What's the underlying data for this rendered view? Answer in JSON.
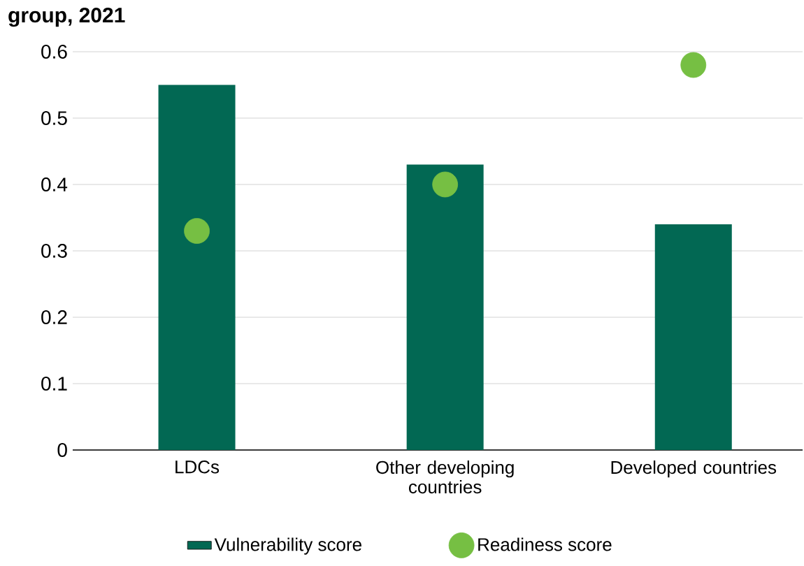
{
  "chart_data": {
    "type": "bar",
    "title": "group, 2021",
    "categories": [
      "LDCs",
      "Other developing countries",
      "Developed countries"
    ],
    "series": [
      {
        "name": "Vulnerability score",
        "color": "#026853",
        "values": [
          0.55,
          0.43,
          0.34
        ]
      },
      {
        "name": "Readiness score",
        "type": "scatter",
        "color": "#76bf43",
        "marker": "circle",
        "values": [
          0.33,
          0.4,
          0.58
        ]
      }
    ],
    "ylim": [
      0,
      0.6
    ],
    "yticks": [
      0,
      0.1,
      0.2,
      0.3,
      0.4,
      0.5,
      0.6
    ],
    "grid": "y",
    "legend": "bottom"
  }
}
